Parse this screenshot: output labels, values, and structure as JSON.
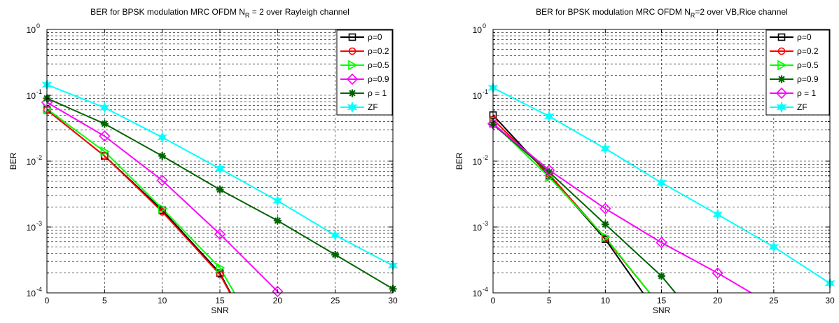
{
  "chart_data": [
    {
      "type": "line",
      "title": "BER for BPSK modulation MRC OFDM N",
      "title_sub": "R",
      "title_rest": " = 2 over Rayleigh channel",
      "xlabel": "SNR",
      "ylabel": "BER",
      "xlim": [
        0,
        30
      ],
      "ylim": [
        0.0001,
        1
      ],
      "yscale": "log",
      "xticks": [
        "0",
        "5",
        "10",
        "15",
        "20",
        "25",
        "30"
      ],
      "yticks": [
        {
          "base": "10",
          "exp": "-4"
        },
        {
          "base": "10",
          "exp": "-3"
        },
        {
          "base": "10",
          "exp": "-2"
        },
        {
          "base": "10",
          "exp": "-1"
        },
        {
          "base": "10",
          "exp": "0"
        }
      ],
      "grid": true,
      "legend_position": "top-right",
      "series": [
        {
          "name": "ρ=0",
          "color": "#000000",
          "marker": "square",
          "x": [
            0,
            5,
            10,
            15,
            17.5
          ],
          "y": [
            0.06,
            0.012,
            0.0018,
            0.0002,
            3e-05
          ]
        },
        {
          "name": "ρ=0.2",
          "color": "#ff0000",
          "marker": "circle",
          "x": [
            0,
            5,
            10,
            15,
            17.5
          ],
          "y": [
            0.06,
            0.012,
            0.0017,
            0.00019,
            3e-05
          ]
        },
        {
          "name": "ρ=0.5",
          "color": "#00ff00",
          "marker": "triangle-right",
          "x": [
            0,
            5,
            10,
            15,
            17
          ],
          "y": [
            0.062,
            0.014,
            0.0019,
            0.00024,
            6e-05
          ]
        },
        {
          "name": "ρ=0.9",
          "color": "#ff00ff",
          "marker": "diamond",
          "x": [
            0,
            5,
            10,
            15,
            20,
            21
          ],
          "y": [
            0.078,
            0.024,
            0.0051,
            0.00078,
            0.000105,
            6e-05
          ]
        },
        {
          "name": "ρ = 1",
          "color": "#006400",
          "marker": "asterisk",
          "x": [
            0,
            5,
            10,
            15,
            20,
            25,
            30
          ],
          "y": [
            0.09,
            0.037,
            0.012,
            0.0037,
            0.00125,
            0.00038,
            0.000115
          ]
        },
        {
          "name": "ZF",
          "color": "#00ffff",
          "marker": "hexagram",
          "x": [
            0,
            5,
            10,
            15,
            20,
            25,
            30
          ],
          "y": [
            0.145,
            0.065,
            0.023,
            0.0077,
            0.0025,
            0.00075,
            0.00026
          ]
        }
      ]
    },
    {
      "type": "line",
      "title": "BER for BPSK modulation MRC OFDM N",
      "title_sub": "R",
      "title_rest": "=2 over VB,Rice channel",
      "xlabel": "SNR",
      "ylabel": "BER",
      "xlim": [
        0,
        30
      ],
      "ylim": [
        0.0001,
        1
      ],
      "yscale": "log",
      "xticks": [
        "0",
        "5",
        "10",
        "15",
        "20",
        "25",
        "30"
      ],
      "yticks": [
        {
          "base": "10",
          "exp": "-4"
        },
        {
          "base": "10",
          "exp": "-3"
        },
        {
          "base": "10",
          "exp": "-2"
        },
        {
          "base": "10",
          "exp": "-1"
        },
        {
          "base": "10",
          "exp": "0"
        }
      ],
      "grid": true,
      "legend_position": "top-right",
      "series": [
        {
          "name": "ρ=0",
          "color": "#000000",
          "marker": "square",
          "x": [
            0,
            5,
            10,
            15
          ],
          "y": [
            0.05,
            0.006,
            0.00065,
            4e-05
          ]
        },
        {
          "name": "ρ=0.2",
          "color": "#ff0000",
          "marker": "circle",
          "x": [
            0,
            5,
            10,
            15
          ],
          "y": [
            0.043,
            0.0063,
            0.00068,
            6e-05
          ]
        },
        {
          "name": "ρ=0.5",
          "color": "#00ff00",
          "marker": "triangle-right",
          "x": [
            0,
            5,
            10,
            15
          ],
          "y": [
            0.038,
            0.0057,
            0.0007,
            6e-05
          ]
        },
        {
          "name": "ρ=0.9",
          "color": "#006400",
          "marker": "asterisk",
          "x": [
            0,
            5,
            10,
            15,
            17
          ],
          "y": [
            0.036,
            0.0068,
            0.0011,
            0.00018,
            7e-05
          ]
        },
        {
          "name": "ρ = 1",
          "color": "#ff00ff",
          "marker": "diamond",
          "x": [
            0,
            5,
            10,
            15,
            20,
            23
          ],
          "y": [
            0.037,
            0.0073,
            0.0019,
            0.00058,
            0.0002,
            0.0001
          ]
        },
        {
          "name": "ZF",
          "color": "#00ffff",
          "marker": "hexagram",
          "x": [
            0,
            5,
            10,
            15,
            20,
            25,
            30
          ],
          "y": [
            0.13,
            0.048,
            0.0155,
            0.0047,
            0.00155,
            0.0005,
            0.00014
          ]
        }
      ]
    }
  ]
}
